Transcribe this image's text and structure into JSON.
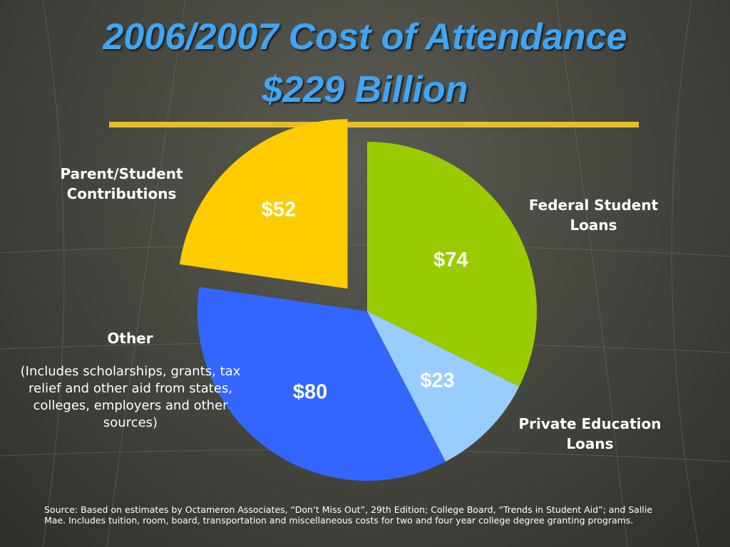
{
  "title_line1": "2006/2007 Cost of Attendance",
  "title_line2": "$229 Billion",
  "colors": {
    "title": "#3fa6f5",
    "rule": "#e8bd2c",
    "federal": "#99cc00",
    "private": "#99ccff",
    "other": "#3366ff",
    "parent": "#ffcc00"
  },
  "chart_data": {
    "type": "pie",
    "total_label": "$229 Billion",
    "slices": [
      {
        "name": "Federal Student Loans",
        "value": 74,
        "value_label": "$74",
        "color": "#99cc00"
      },
      {
        "name": "Private Education Loans",
        "value": 23,
        "value_label": "$23",
        "color": "#99ccff"
      },
      {
        "name": "Other",
        "value": 80,
        "value_label": "$80",
        "color": "#3366ff"
      },
      {
        "name": "Parent/Student Contributions",
        "value": 52,
        "value_label": "$52",
        "color": "#ffcc00",
        "exploded": true
      }
    ]
  },
  "labels": {
    "federal_line1": "Federal Student",
    "federal_line2": "Loans",
    "private_line1": "Private Education",
    "private_line2": "Loans",
    "parent_line1": "Parent/Student",
    "parent_line2": "Contributions",
    "other_title": "Other",
    "other_desc": "(Includes scholarships, grants, tax relief and other aid from states, colleges, employers and other sources)"
  },
  "source": "Source:  Based on estimates by Octameron Associates, “Don’t Miss Out”, 29th Edition; College Board,  “Trends in Student Aid”;  and Sallie Mae.  Includes tuition, room, board, transportation and miscellaneous costs for two and four year college degree granting programs."
}
